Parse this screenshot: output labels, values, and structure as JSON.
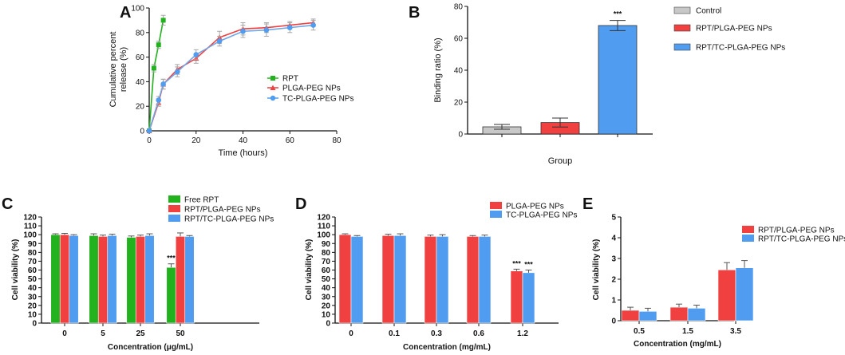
{
  "panels": {
    "A": "A",
    "B": "B",
    "C": "C",
    "D": "D",
    "E": "E"
  },
  "colors": {
    "green": "#22b21e",
    "red": "#f04040",
    "blue": "#4f9cf0",
    "gray": "#c8c8c8",
    "lightblue": "#8fb8e8"
  },
  "chart_data": [
    {
      "id": "A",
      "type": "line",
      "title": "",
      "xlabel": "Time (hours)",
      "ylabel_lines": [
        "Cumulative percent",
        "release (%)"
      ],
      "xlim": [
        0,
        80
      ],
      "ylim": [
        0,
        100
      ],
      "xticks": [
        "0",
        "20",
        "40",
        "60",
        "80"
      ],
      "yticks": [
        "0",
        "20",
        "40",
        "60",
        "80",
        "100"
      ],
      "series": [
        {
          "name": "RPT",
          "color": "#22b21e",
          "marker": "square",
          "x": [
            0,
            2,
            4,
            6
          ],
          "y": [
            0,
            51,
            70,
            90
          ],
          "err": [
            0,
            3,
            3,
            4
          ]
        },
        {
          "name": "PLGA-PEG NPs",
          "color": "#f04040",
          "marker": "triangle",
          "x": [
            0,
            4,
            6,
            12,
            20,
            30,
            40,
            50,
            60,
            70
          ],
          "y": [
            0,
            23,
            38,
            50,
            59,
            76,
            83,
            84,
            86,
            88
          ],
          "err": [
            0,
            3,
            4,
            4,
            4,
            5,
            5,
            4,
            3,
            3
          ]
        },
        {
          "name": "TC-PLGA-PEG NPs",
          "color": "#4f9cf0",
          "marker": "circle",
          "x": [
            0,
            4,
            6,
            12,
            20,
            30,
            40,
            50,
            60,
            70
          ],
          "y": [
            0,
            25,
            38,
            48,
            62,
            73,
            81,
            82,
            84,
            86
          ],
          "err": [
            0,
            3,
            4,
            4,
            4,
            4,
            5,
            5,
            4,
            4
          ]
        }
      ]
    },
    {
      "id": "B",
      "type": "bar",
      "xlabel": "Group",
      "ylabel": "Binding ratio (%)",
      "ylim": [
        0,
        80
      ],
      "yticks": [
        "0",
        "20",
        "40",
        "60",
        "80"
      ],
      "categories": [
        "Control",
        "RPT/PLGA-PEG NPs",
        "RPT/TC-PLGA-PEG NPs"
      ],
      "values": [
        4.5,
        7.2,
        68
      ],
      "errors": [
        1.5,
        2.8,
        3.2
      ],
      "bar_colors": [
        "#c8c8c8",
        "#f04040",
        "#4f9cf0"
      ],
      "annotations": [
        "",
        "",
        "***"
      ]
    },
    {
      "id": "C",
      "type": "bar",
      "xlabel": "Concentration (μg/mL)",
      "ylabel": "Cell viability (%)",
      "ylim": [
        0,
        120
      ],
      "yticks": [
        "0",
        "10",
        "20",
        "30",
        "40",
        "50",
        "60",
        "70",
        "80",
        "90",
        "100",
        "110",
        "120"
      ],
      "categories": [
        "0",
        "5",
        "25",
        "50"
      ],
      "series": [
        {
          "name": "Free RPT",
          "color": "#22b21e",
          "values": [
            100,
            99,
            97,
            63
          ],
          "errors": [
            1,
            2,
            1.5,
            4
          ],
          "annotations": [
            "",
            "",
            "",
            "***"
          ]
        },
        {
          "name": "RPT/PLGA-PEG NPs",
          "color": "#f04040",
          "values": [
            100,
            98,
            98,
            98
          ],
          "errors": [
            1.5,
            1.5,
            1.5,
            4
          ],
          "annotations": [
            "",
            "",
            "",
            ""
          ]
        },
        {
          "name": "RPT/TC-PLGA-PEG NPs",
          "color": "#4f9cf0",
          "values": [
            99,
            99,
            99,
            98
          ],
          "errors": [
            1,
            1.5,
            2,
            1
          ],
          "annotations": [
            "",
            "",
            "",
            ""
          ]
        }
      ]
    },
    {
      "id": "D",
      "type": "bar",
      "xlabel": "Concentration (mg/mL)",
      "ylabel": "Cell viability (%)",
      "ylim": [
        0,
        120
      ],
      "yticks": [
        "0",
        "10",
        "20",
        "30",
        "40",
        "50",
        "60",
        "70",
        "80",
        "90",
        "100",
        "110",
        "120"
      ],
      "categories": [
        "0",
        "0.1",
        "0.3",
        "0.6",
        "1.2"
      ],
      "series": [
        {
          "name": "PLGA-PEG NPs",
          "color": "#f04040",
          "values": [
            100,
            99,
            98,
            98,
            59
          ],
          "errors": [
            1,
            1.5,
            1.5,
            1,
            2
          ],
          "annotations": [
            "",
            "",
            "",
            "",
            "***"
          ]
        },
        {
          "name": "TC-PLGA-PEG NPs",
          "color": "#4f9cf0",
          "values": [
            98,
            99,
            98,
            98,
            57
          ],
          "errors": [
            1,
            2,
            2,
            1.5,
            3
          ],
          "annotations": [
            "",
            "",
            "",
            "",
            "***"
          ]
        }
      ]
    },
    {
      "id": "E",
      "type": "bar",
      "xlabel": "Concentration (mg/mL)",
      "ylabel": "Cell viability (%)",
      "ylim": [
        0,
        5
      ],
      "yticks": [
        "0",
        "1",
        "2",
        "3",
        "4",
        "5"
      ],
      "categories": [
        "0.5",
        "1.5",
        "3.5"
      ],
      "series": [
        {
          "name": "RPT/PLGA-PEG NPs",
          "color": "#f04040",
          "values": [
            0.5,
            0.65,
            2.45
          ],
          "errors": [
            0.15,
            0.15,
            0.35
          ],
          "annotations": [
            "",
            "",
            ""
          ]
        },
        {
          "name": "RPT/TC-PLGA-PEG NPs",
          "color": "#4f9cf0",
          "values": [
            0.45,
            0.6,
            2.55
          ],
          "errors": [
            0.15,
            0.15,
            0.35
          ],
          "annotations": [
            "",
            "",
            ""
          ]
        }
      ]
    }
  ]
}
